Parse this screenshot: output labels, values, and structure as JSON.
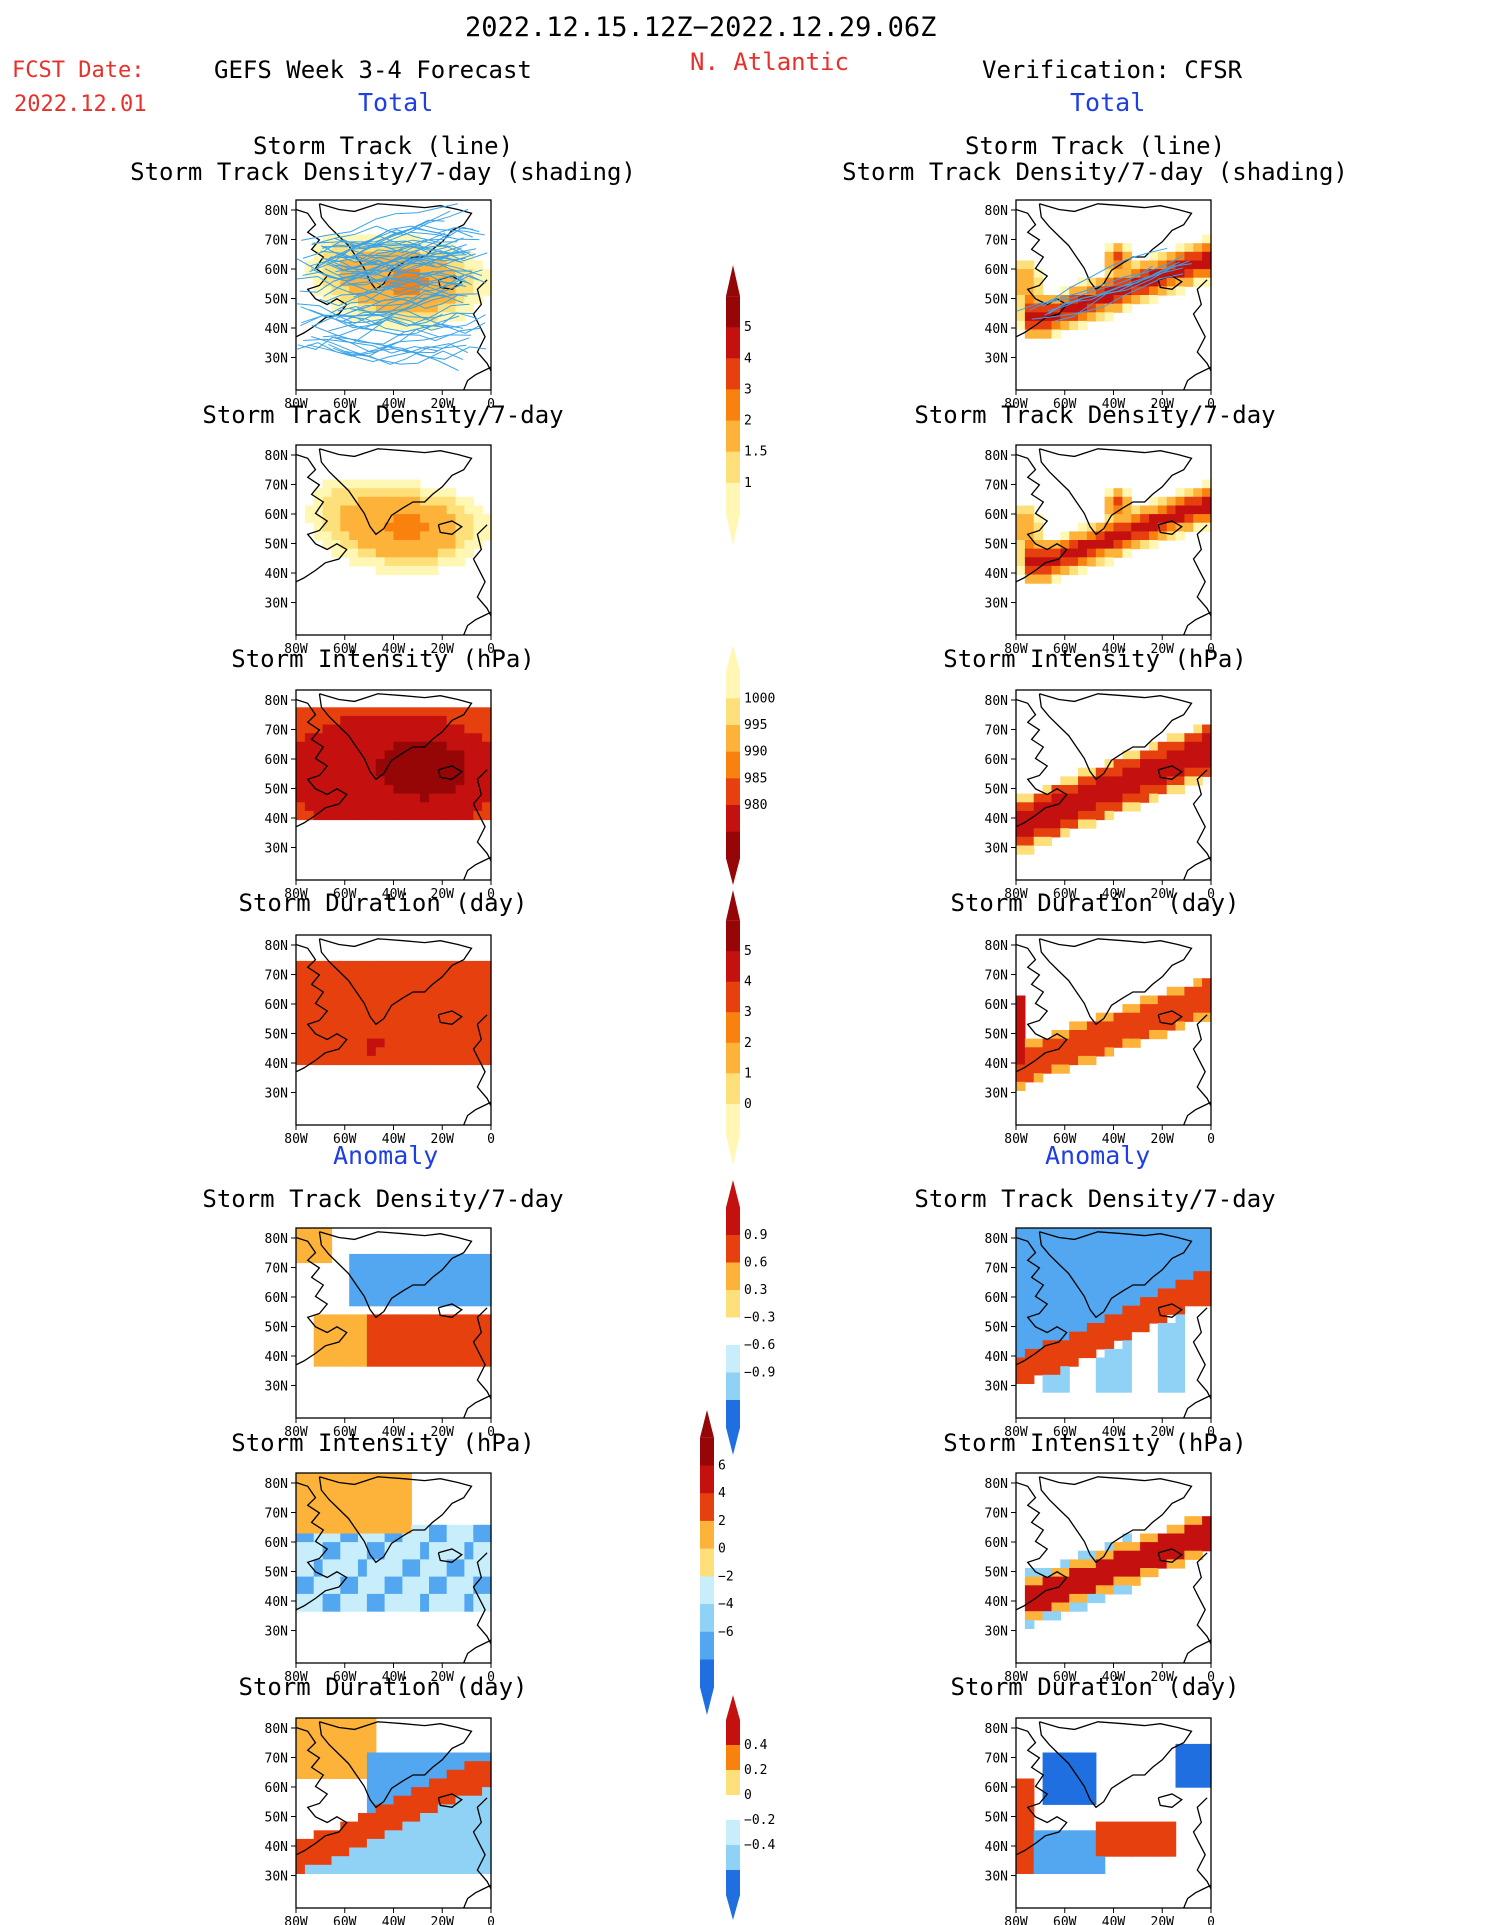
{
  "header": {
    "date_range": "2022.12.15.12Z−2022.12.29.06Z",
    "region": "N. Atlantic",
    "fcst_label": "FCST Date:",
    "fcst_date": "2022.12.01",
    "left_title": "GEFS Week 3-4 Forecast",
    "right_title": "Verification: CFSR",
    "total_label": "Total",
    "anomaly_label": "Anomaly"
  },
  "map_axes": {
    "lat_labels": [
      "80N",
      "70N",
      "60N",
      "50N",
      "40N",
      "30N"
    ],
    "lon_labels": [
      "80W",
      "60W",
      "40W",
      "20W",
      "0"
    ]
  },
  "panels": [
    {
      "title": "Storm Track (line)",
      "title2": "Storm Track Density/7-day (shading)"
    },
    {
      "title": "Storm Track Density/7-day",
      "title2": ""
    },
    {
      "title": "Storm Intensity (hPa)",
      "title2": ""
    },
    {
      "title": "Storm Duration (day)",
      "title2": ""
    },
    {
      "title": "Storm Track Density/7-day",
      "title2": ""
    },
    {
      "title": "Storm Intensity (hPa)",
      "title2": ""
    },
    {
      "title": "Storm Duration (day)",
      "title2": ""
    }
  ],
  "colorbars": [
    {
      "name": "density",
      "labels": [
        "5",
        "4",
        "3",
        "2",
        "1.5",
        "1"
      ]
    },
    {
      "name": "intensity",
      "labels": [
        "1000",
        "995",
        "990",
        "985",
        "980"
      ]
    },
    {
      "name": "duration",
      "labels": [
        "5",
        "4",
        "3",
        "2",
        "1",
        "0"
      ]
    },
    {
      "name": "density-anomaly",
      "labels": [
        "0.9",
        "0.6",
        "0.3",
        "−0.3",
        "−0.6",
        "−0.9"
      ]
    },
    {
      "name": "intensity-anomaly",
      "labels": [
        "6",
        "4",
        "2",
        "0",
        "−2",
        "−4",
        "−6"
      ]
    },
    {
      "name": "duration-anomaly",
      "labels": [
        "0.4",
        "0.2",
        "0",
        "−0.2",
        "−0.4"
      ]
    }
  ],
  "colors": {
    "warm": [
      "#fff7b3",
      "#fde07a",
      "#fdb23a",
      "#f9820f",
      "#e6400f",
      "#c4100f",
      "#960606"
    ],
    "cool": [
      "#c8eefc",
      "#8fd2f6",
      "#52a7f0",
      "#1f6fe0"
    ],
    "track_line": "#3aa3e8",
    "title_red": "#e8302b",
    "label_blue": "#1f3fe0"
  }
}
